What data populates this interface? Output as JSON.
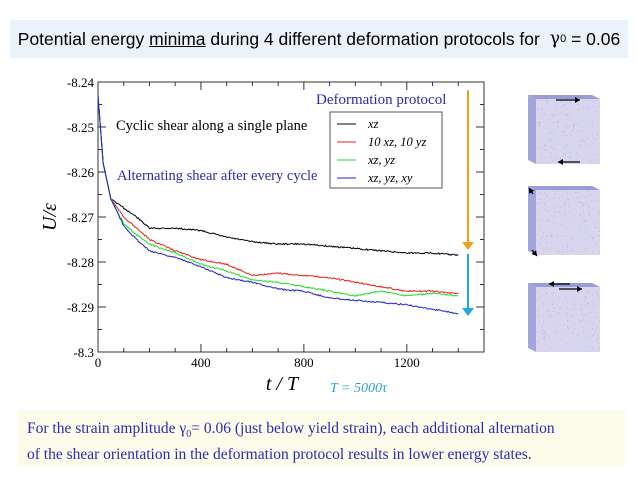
{
  "banner": {
    "prefix": "Potential energy ",
    "underlined": "minima",
    "suffix": " during 4 different deformation protocols for ",
    "symbol": "γ",
    "subscript": "0",
    "value": " = 0.06"
  },
  "chart_data": {
    "type": "line",
    "xlabel": "t / T",
    "ylabel": "U/ε",
    "xlim": [
      0,
      1500
    ],
    "ylim": [
      -8.3,
      -8.24
    ],
    "xticks": [
      0,
      400,
      800,
      1200
    ],
    "yticks": [
      -8.24,
      -8.25,
      -8.26,
      -8.27,
      -8.28,
      -8.29,
      -8.3
    ],
    "ytick_labels": [
      "-8.24",
      "-8.25",
      "-8.26",
      "-8.27",
      "-8.28",
      "-8.29",
      "-8.3"
    ],
    "grid": false,
    "legend_title": "Deformation protocol",
    "legend_placement": "top-right",
    "annotations": {
      "single_plane": "Cyclic shear along a single plane",
      "alternating": "Alternating shear after every cycle",
      "period": "T = 5000τ"
    },
    "x": [
      0,
      20,
      50,
      100,
      150,
      200,
      300,
      400,
      500,
      600,
      700,
      800,
      900,
      1000,
      1100,
      1200,
      1300,
      1400
    ],
    "series": [
      {
        "name": "xz",
        "color": "#000000",
        "values": [
          -8.243,
          -8.258,
          -8.266,
          -8.268,
          -8.27,
          -8.2725,
          -8.2725,
          -8.273,
          -8.2745,
          -8.2755,
          -8.276,
          -8.276,
          -8.2765,
          -8.277,
          -8.2775,
          -8.278,
          -8.278,
          -8.2785
        ]
      },
      {
        "name": "10 xz, 10 yz",
        "color": "#e8201c",
        "values": [
          -8.243,
          -8.258,
          -8.266,
          -8.27,
          -8.2725,
          -8.275,
          -8.2775,
          -8.2795,
          -8.2805,
          -8.283,
          -8.2825,
          -8.283,
          -8.2835,
          -8.2845,
          -8.2855,
          -8.2865,
          -8.2865,
          -8.287
        ]
      },
      {
        "name": "xz, yz",
        "color": "#22dd22",
        "values": [
          -8.243,
          -8.258,
          -8.266,
          -8.2715,
          -8.274,
          -8.276,
          -8.278,
          -8.2805,
          -8.282,
          -8.284,
          -8.2845,
          -8.2855,
          -8.2865,
          -8.2875,
          -8.2865,
          -8.2875,
          -8.287,
          -8.2875
        ]
      },
      {
        "name": "xz, yz, xy",
        "color": "#2222cc",
        "values": [
          -8.243,
          -8.258,
          -8.266,
          -8.272,
          -8.275,
          -8.2775,
          -8.279,
          -8.281,
          -8.2835,
          -8.2845,
          -8.286,
          -8.2865,
          -8.288,
          -8.2885,
          -8.289,
          -8.2895,
          -8.2905,
          -8.2915
        ]
      }
    ],
    "arrow_colors": [
      "#f0a020",
      "#20a8e0"
    ]
  },
  "note": {
    "line1_prefix": "For the strain amplitude ",
    "symbol": "γ",
    "subscript": "0",
    "line1_suffix": "= 0.06 (just below yield strain), each additional alternation",
    "line2": "of the shear orientation in the deformation protocol results in lower energy states."
  }
}
